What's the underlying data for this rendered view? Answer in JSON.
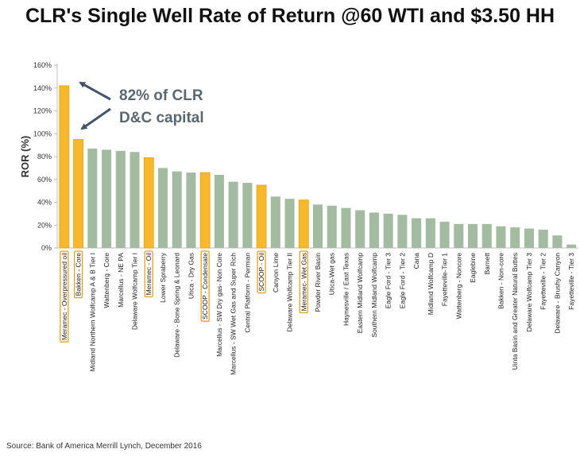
{
  "title": "CLR's Single Well Rate of Return @60 WTI and $3.50 HH",
  "source": "Source: Bank of America Merrill Lynch, December 2016",
  "colors": {
    "highlight": "#f7b92b",
    "default": "#a3bca1",
    "outline": "#e3a21a",
    "arrow": "#44546a"
  },
  "chart_data": {
    "type": "bar",
    "title": "CLR's Single Well Rate of Return @60 WTI and $3.50 HH",
    "xlabel": "",
    "ylabel": "ROR (%)",
    "ylim": [
      0,
      160
    ],
    "yticks": [
      0,
      20,
      40,
      60,
      80,
      100,
      120,
      140,
      160
    ],
    "ytick_labels": [
      "0%",
      "20%",
      "40%",
      "60%",
      "80%",
      "100%",
      "120%",
      "140%",
      "160%"
    ],
    "grid": false,
    "legend": "none",
    "categories": [
      "Meramec - Overpressured oil",
      "Bakken - Core",
      "Midland Northern Wolfcamp A & B Tier I",
      "Wattenberg - Core",
      "Marcellus - NE PA",
      "Delaware Wolfcamp Tier I",
      "Meramec - Oil",
      "Lower Spraberry",
      "Delaware - Bone Spring & Leonard",
      "Utica - Dry Gas",
      "SCOOP - Condensate",
      "Marcellus - SW Dry gas- Non Core",
      "Marcellus - SW Wet Gas and Super Rich",
      "Central Platform - Permian",
      "SCOOP - Oil",
      "Canyon Lime",
      "Delaware Wolfcamp Tier II",
      "Meramec- Wet Gas",
      "Powder River Basin",
      "Utica-Wet gas",
      "Haynesville / East Texas",
      "Eastern Midland Wolfcamp",
      "Southern Midland Wolfcamp",
      "Eagle Ford - Tier 3",
      "Eagle Ford - Tier 2",
      "Cana",
      "Midland Wolfcamp D",
      "Fayetteville-Tier 1",
      "Wattenberg - Noncore",
      "Eaglebine",
      "Barnett",
      "Bakken - Non-core",
      "Uinta Basin and Greater Natural Buttes",
      "Delaware Wolfcamp Tier 3",
      "Fayetteville - Tier 2",
      "Delaware - Brushy Canyon",
      "Fayetteville - Tier 3"
    ],
    "values": [
      142,
      95,
      87,
      86,
      85,
      84,
      79,
      70,
      67,
      66,
      66,
      64,
      58,
      57,
      55,
      45,
      43,
      42,
      38,
      37,
      35,
      33,
      31,
      30,
      29,
      26,
      26,
      23,
      21,
      21,
      21,
      19,
      18,
      17,
      16,
      11,
      3
    ],
    "highlighted": [
      true,
      true,
      false,
      false,
      false,
      false,
      true,
      false,
      false,
      false,
      true,
      false,
      false,
      false,
      true,
      false,
      false,
      true,
      false,
      false,
      false,
      false,
      false,
      false,
      false,
      false,
      false,
      false,
      false,
      false,
      false,
      false,
      false,
      false,
      false,
      false,
      false
    ],
    "annotations": [
      {
        "text": "82% of CLR"
      },
      {
        "text": "D&C capital"
      }
    ]
  }
}
